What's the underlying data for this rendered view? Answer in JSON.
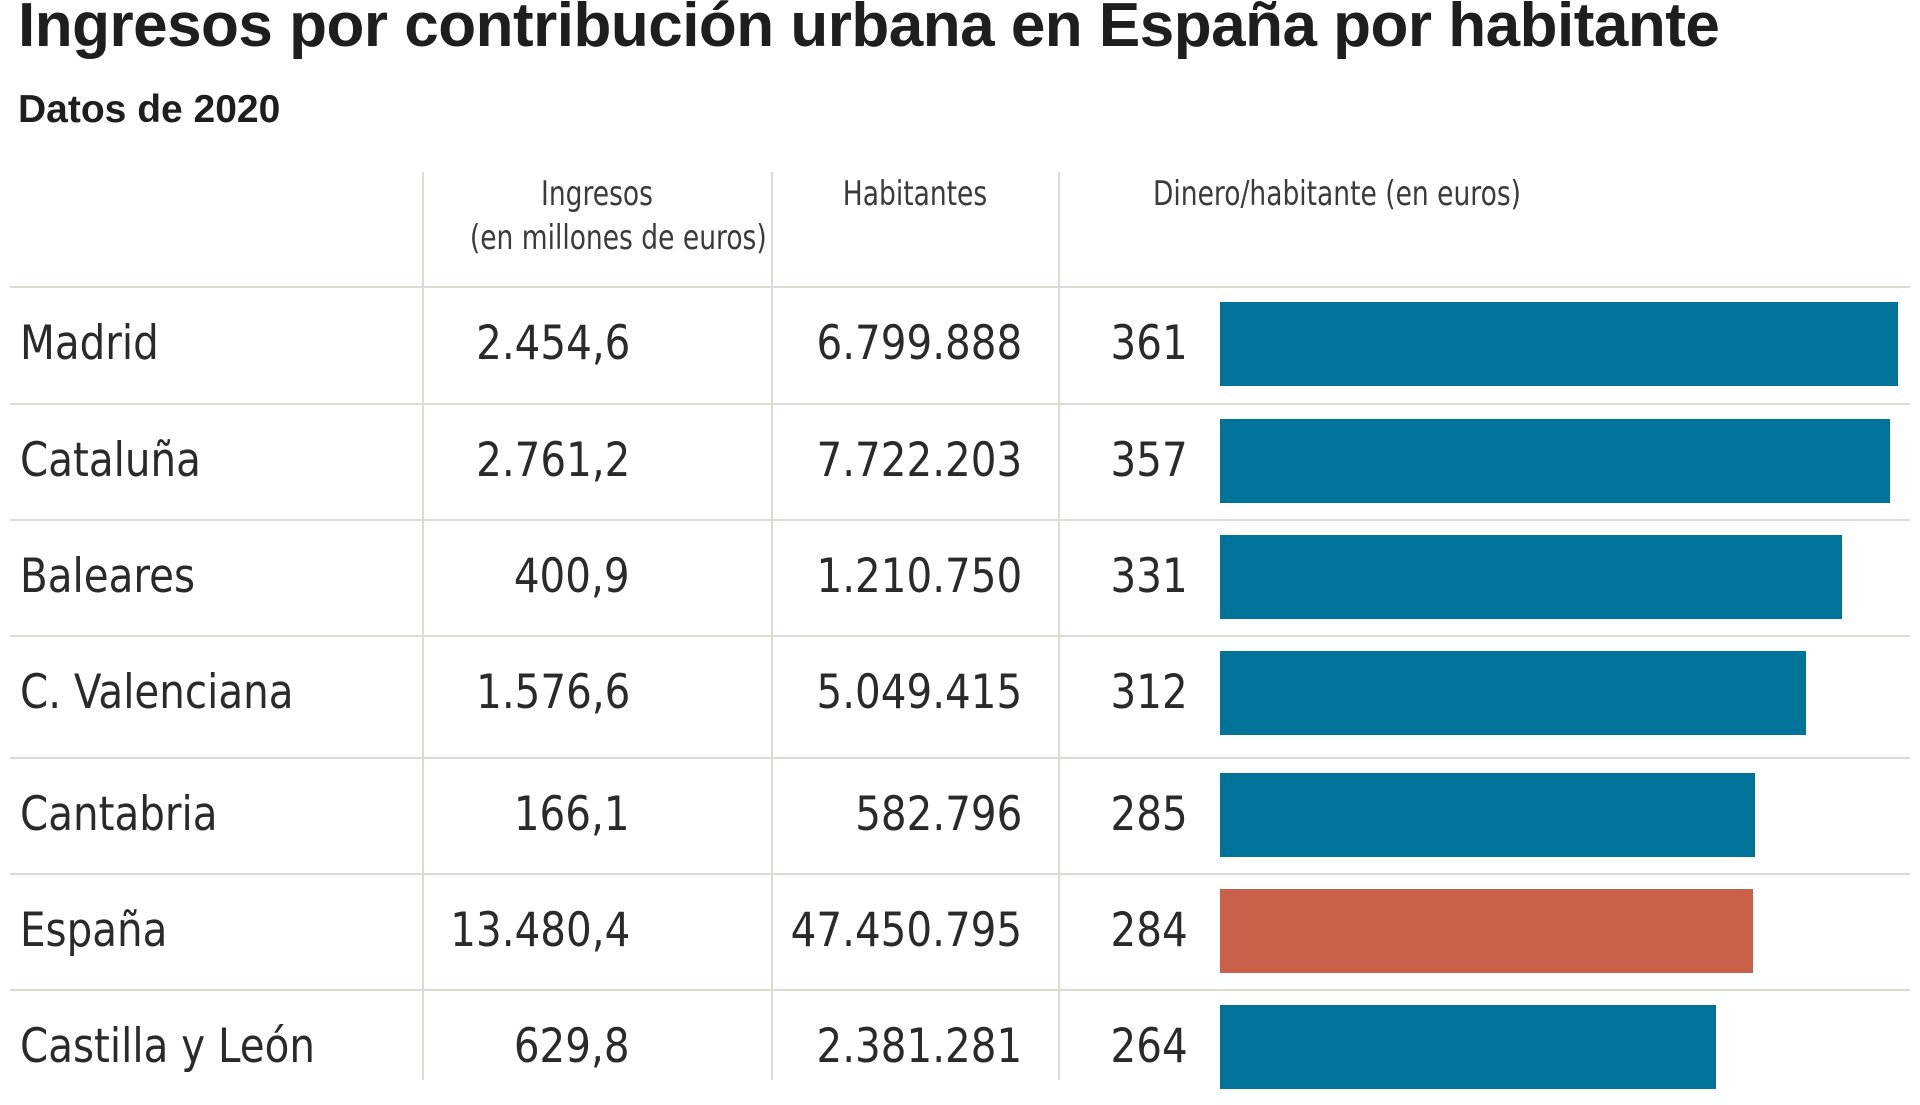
{
  "title": "Ingresos por contribución urbana en España por habitante",
  "subtitle": "Datos de 2020",
  "columns": {
    "ingresos_line1": "Ingresos",
    "ingresos_line2": "(en millones de euros)",
    "habitantes": "Habitantes",
    "dinero": "Dinero/habitante (en euros)"
  },
  "colors": {
    "bar": "#007398",
    "highlight": "#c8604a",
    "grid": "#dedad4"
  },
  "rows": [
    {
      "region": "Madrid",
      "ingresos": "2.454,6",
      "habitantes": "6.799.888",
      "dinero": "361",
      "highlight": false
    },
    {
      "region": "Cataluña",
      "ingresos": "2.761,2",
      "habitantes": "7.722.203",
      "dinero": "357",
      "highlight": false
    },
    {
      "region": "Baleares",
      "ingresos": "400,9",
      "habitantes": "1.210.750",
      "dinero": "331",
      "highlight": false
    },
    {
      "region": "C. Valenciana",
      "ingresos": "1.576,6",
      "habitantes": "5.049.415",
      "dinero": "312",
      "highlight": false
    },
    {
      "region": "Cantabria",
      "ingresos": "166,1",
      "habitantes": "582.796",
      "dinero": "285",
      "highlight": false
    },
    {
      "region": "España",
      "ingresos": "13.480,4",
      "habitantes": "47.450.795",
      "dinero": "284",
      "highlight": true
    },
    {
      "region": "Castilla y León",
      "ingresos": "629,8",
      "habitantes": "2.381.281",
      "dinero": "264",
      "highlight": false
    }
  ],
  "chart_data": {
    "type": "bar",
    "orientation": "horizontal",
    "title": "Ingresos por contribución urbana en España por habitante",
    "subtitle": "Datos de 2020",
    "categories": [
      "Madrid",
      "Cataluña",
      "Baleares",
      "C. Valenciana",
      "Cantabria",
      "España",
      "Castilla y León"
    ],
    "series": [
      {
        "name": "Dinero/habitante (en euros)",
        "values": [
          361,
          357,
          331,
          312,
          285,
          284,
          264
        ]
      }
    ],
    "table_columns": [
      "",
      "Ingresos (en millones de euros)",
      "Habitantes",
      "Dinero/habitante (en euros)"
    ],
    "ingresos_millones_eur": [
      2454.6,
      2761.2,
      400.9,
      1576.6,
      166.1,
      13480.4,
      629.8
    ],
    "habitantes": [
      6799888,
      7722203,
      1210750,
      5049415,
      582796,
      47450795,
      2381281
    ],
    "highlighted_category": "España",
    "grid": false
  }
}
